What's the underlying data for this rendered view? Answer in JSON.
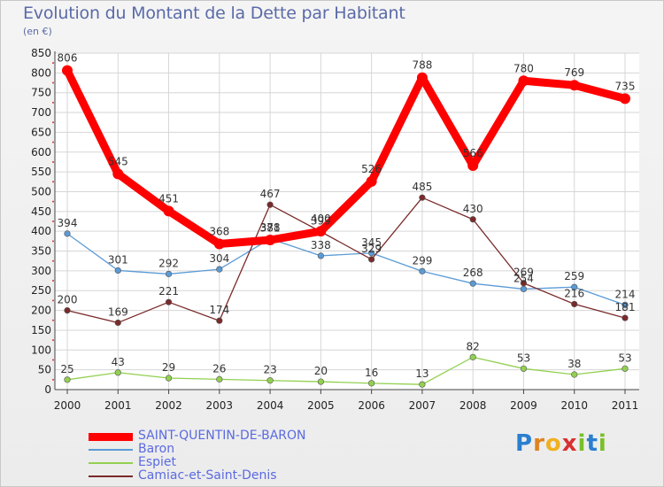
{
  "header": {
    "title": "Evolution du Montant de la Dette par Habitant",
    "subtitle": "(en €)"
  },
  "logo": {
    "text": "Proxiti",
    "letters": [
      "P",
      "r",
      "o",
      "x",
      "i",
      "t",
      "i"
    ],
    "colors": [
      "#2a7fd0",
      "#e0821e",
      "#f0b020",
      "#d83030",
      "#7abf2a",
      "#2a7fd0",
      "#7abf2a"
    ]
  },
  "chart_data": {
    "type": "line",
    "title": "Evolution du Montant de la Dette par Habitant",
    "subtitle": "(en €)",
    "xlabel": "",
    "ylabel": "",
    "x": [
      "2000",
      "2001",
      "2002",
      "2003",
      "2004",
      "2005",
      "2006",
      "2007",
      "2008",
      "2009",
      "2010",
      "2011"
    ],
    "ylim": [
      0,
      850
    ],
    "yticks": [
      0,
      50,
      100,
      150,
      200,
      250,
      300,
      350,
      400,
      450,
      500,
      550,
      600,
      650,
      700,
      750,
      800,
      850
    ],
    "grid": true,
    "legend_position": "bottom-left",
    "series": [
      {
        "name": "SAINT-QUENTIN-DE-BARON",
        "color": "#ff0000",
        "values": [
          806,
          545,
          451,
          368,
          378,
          400,
          526,
          788,
          566,
          780,
          769,
          735
        ],
        "labels": [
          "806",
          "545",
          "451",
          "368",
          "378",
          "400",
          "526",
          "788",
          "566",
          "780",
          "769",
          "735"
        ]
      },
      {
        "name": "Baron",
        "color": "#5b9bd5",
        "values": [
          394,
          301,
          292,
          304,
          381,
          338,
          345,
          299,
          268,
          254,
          259,
          214
        ],
        "labels": [
          "394",
          "301",
          "292",
          "304",
          "381",
          "338",
          "345",
          "299",
          "268",
          "254",
          "259",
          "214"
        ]
      },
      {
        "name": "Espiet",
        "color": "#92d050",
        "values": [
          25,
          43,
          29,
          26,
          23,
          20,
          16,
          13,
          82,
          53,
          38,
          53
        ],
        "labels": [
          "25",
          "43",
          "29",
          "26",
          "23",
          "20",
          "16",
          "13",
          "82",
          "53",
          "38",
          "53"
        ]
      },
      {
        "name": "Camiac-et-Saint-Denis",
        "color": "#7a2a2a",
        "values": [
          200,
          169,
          221,
          174,
          467,
          399,
          329,
          485,
          430,
          269,
          216,
          181
        ],
        "labels": [
          "200",
          "169",
          "221",
          "174",
          "467",
          "399",
          "329",
          "485",
          "430",
          "269",
          "216",
          "181"
        ]
      }
    ]
  }
}
